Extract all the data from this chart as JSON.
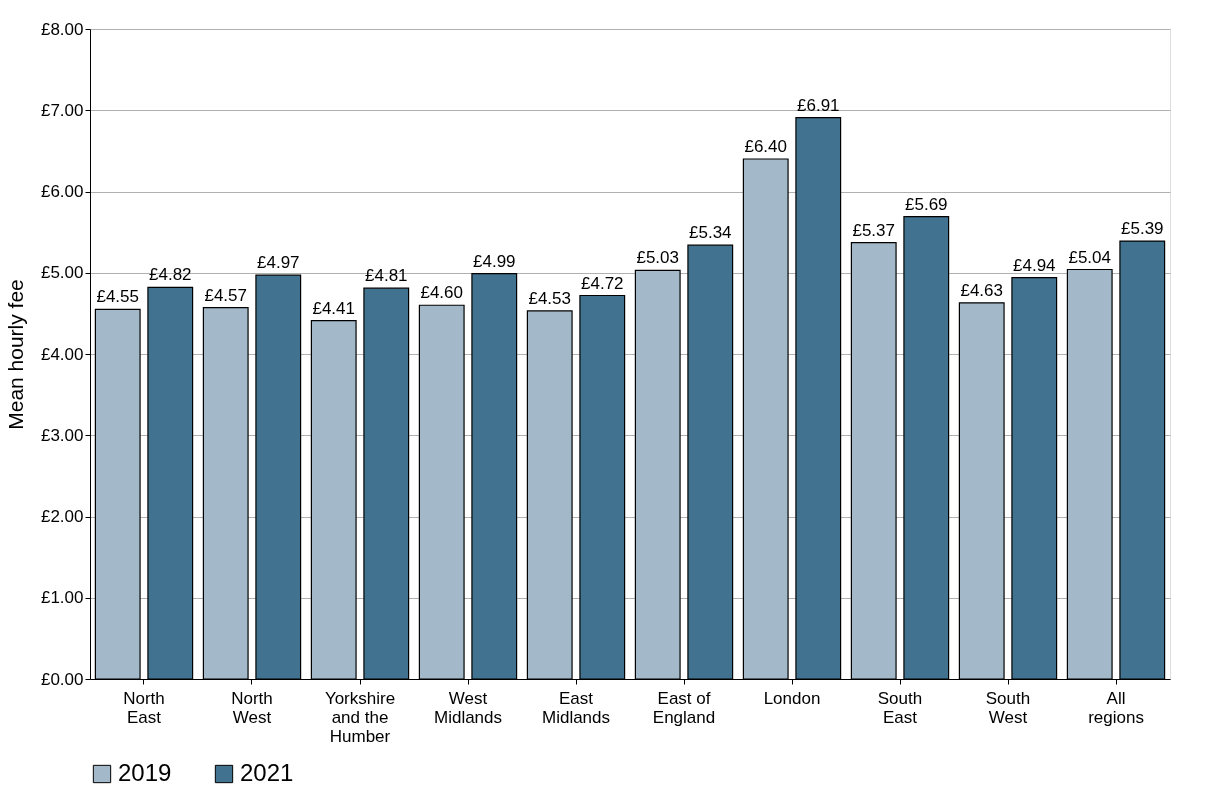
{
  "chart_data": {
    "type": "bar",
    "ylabel": "Mean hourly fee",
    "categories": [
      "North East",
      "North West",
      "Yorkshire and the Humber",
      "West Midlands",
      "East Midlands",
      "East of England",
      "London",
      "South East",
      "South West",
      "All regions"
    ],
    "series": [
      {
        "name": "2019",
        "color": "#a3b8c8",
        "values": [
          4.55,
          4.57,
          4.41,
          4.6,
          4.53,
          5.03,
          6.4,
          5.37,
          4.63,
          5.04
        ],
        "value_labels": [
          "£4.55",
          "£4.57",
          "£4.41",
          "£4.60",
          "£4.53",
          "£5.03",
          "£6.40",
          "£5.37",
          "£4.63",
          "£5.04"
        ]
      },
      {
        "name": "2021",
        "color": "#41728f",
        "values": [
          4.82,
          4.97,
          4.81,
          4.99,
          4.72,
          5.34,
          6.91,
          5.69,
          4.94,
          5.39
        ],
        "value_labels": [
          "£4.82",
          "£4.97",
          "£4.81",
          "£4.99",
          "£4.72",
          "£5.34",
          "£6.91",
          "£5.69",
          "£4.94",
          "£5.39"
        ]
      }
    ],
    "ylim": [
      0,
      8
    ],
    "yticks": [
      {
        "value": 0,
        "label": "£0.00"
      },
      {
        "value": 1,
        "label": "£1.00"
      },
      {
        "value": 2,
        "label": "£2.00"
      },
      {
        "value": 3,
        "label": "£3.00"
      },
      {
        "value": 4,
        "label": "£4.00"
      },
      {
        "value": 5,
        "label": "£5.00"
      },
      {
        "value": 6,
        "label": "£6.00"
      },
      {
        "value": 7,
        "label": "£7.00"
      },
      {
        "value": 8,
        "label": "£8.00"
      }
    ],
    "grid": "y",
    "legend": "bottom"
  }
}
